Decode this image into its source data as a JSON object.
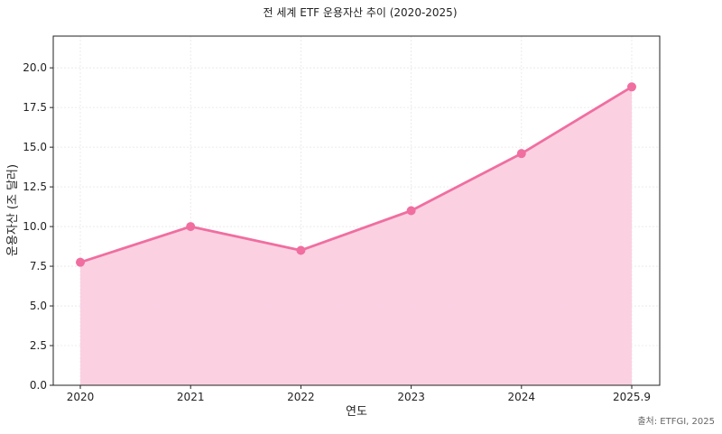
{
  "chart_data": {
    "type": "area",
    "title": "전 세계 ETF 운용자산 추이 (2020-2025)",
    "xlabel": "연도",
    "ylabel": "운용자산 (조 달러)",
    "categories": [
      "2020",
      "2021",
      "2022",
      "2023",
      "2024",
      "2025.9"
    ],
    "series": [
      {
        "values": [
          7.75,
          10.0,
          8.5,
          11.0,
          14.6,
          18.8
        ]
      }
    ],
    "ylim": [
      0,
      22
    ],
    "yticks": [
      "0.0",
      "2.5",
      "5.0",
      "7.5",
      "10.0",
      "12.5",
      "15.0",
      "17.5",
      "20.0"
    ],
    "grid": true,
    "source": "출처: ETFGI, 2025",
    "colors": {
      "line": "#f06ea0",
      "fill": "#fbcfe0",
      "grid": "#e6e6e6",
      "axis": "#222222"
    }
  }
}
